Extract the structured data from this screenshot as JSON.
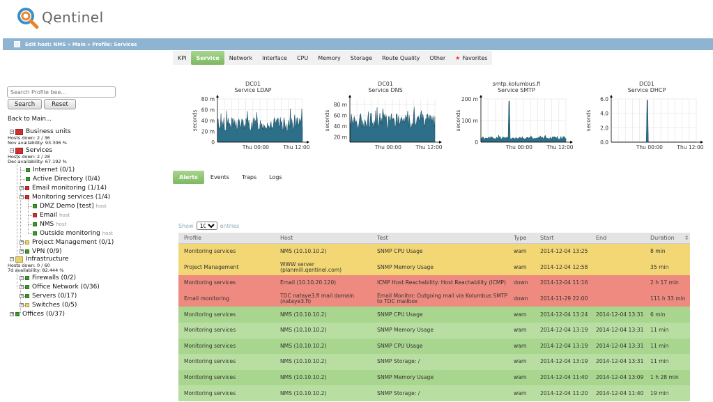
{
  "app": {
    "name": "Qentinel"
  },
  "breadcrumb": {
    "text": "Edit host: NMS » Main » Profile: Services"
  },
  "top_tabs": [
    {
      "label": "KPI",
      "active": false
    },
    {
      "label": "Service",
      "active": true
    },
    {
      "label": "Network",
      "active": false
    },
    {
      "label": "Interface",
      "active": false
    },
    {
      "label": "CPU",
      "active": false
    },
    {
      "label": "Memory",
      "active": false
    },
    {
      "label": "Storage",
      "active": false
    },
    {
      "label": "Route Quality",
      "active": false
    },
    {
      "label": "Other",
      "active": false
    },
    {
      "label": "Favorites",
      "active": false
    }
  ],
  "sidebar": {
    "search_placeholder": "Search Profile bee...",
    "search_label": "Search",
    "reset_label": "Reset",
    "back_label": "Back to Main...",
    "tree": {
      "business_units": {
        "label": "Business units",
        "line1": "Hosts down: 2 / 36",
        "line2": "Nov availability: 93.306 %"
      },
      "services": {
        "label": "Services",
        "line1": "Hosts down: 2 / 28",
        "line2": "Dec availability: 67.192 %"
      },
      "internet": "Internet (0/1)",
      "active_directory": "Active Directory (0/4)",
      "email_monitoring": "Email monitoring (1/14)",
      "monitoring_services": "Monitoring services (1/4)",
      "dmz_demo": "DMZ Demo [test]",
      "email": "Email",
      "nms": "NMS",
      "outside_monitoring": "Outside monitoring",
      "host_tag": "host",
      "project_management": "Project Management (0/1)",
      "vpn": "VPN (0/9)",
      "infrastructure": {
        "label": "Infrastructure",
        "line1": "Hosts down: 0 / 60",
        "line2": "7d availability: 82.444 %"
      },
      "firewalls": "Firewalls (0/2)",
      "office_network": "Office Network (0/36)",
      "servers": "Servers (0/17)",
      "switches": "Switches (0/5)",
      "offices": "Offices (0/37)"
    }
  },
  "colors": {
    "green": "#3a9a2a",
    "red": "#d03030",
    "yellow": "#e8d36a",
    "row_yellow": "#f2d774",
    "row_red": "#ef8a80",
    "row_green": "#a8d68e",
    "chart_fill": "#2d6e88"
  },
  "chart_data": [
    {
      "type": "area",
      "title": "DC01",
      "subtitle": "Service LDAP",
      "ylabel": "seconds",
      "yticks": [
        "0",
        "20 m",
        "40 m",
        "60 m",
        "80 m"
      ],
      "ylim": [
        0,
        90
      ],
      "xticks": [
        "Thu 00:00",
        "Thu 12:00"
      ],
      "baseline": 22,
      "noise": 30,
      "spike_at": [],
      "spike_val": 0
    },
    {
      "type": "area",
      "title": "DC01",
      "subtitle": "Service DNS",
      "ylabel": "seconds",
      "yticks": [
        "20 m",
        "40 m",
        "60 m",
        "80 m"
      ],
      "ylim": [
        10,
        90
      ],
      "xticks": [
        "Thu 00:00",
        "Thu 12:00"
      ],
      "baseline": 35,
      "noise": 30,
      "spike_at": [],
      "spike_val": 0
    },
    {
      "type": "area",
      "title": "smtp.kolumbus.fi",
      "subtitle": "Service SMTP",
      "ylabel": "seconds",
      "yticks": [
        "0",
        "100 m",
        "200 m"
      ],
      "ylim": [
        0,
        200
      ],
      "xticks": [
        "Thu 00:00",
        "Thu 12:00"
      ],
      "baseline": 14,
      "noise": 12,
      "spike_at": [
        0.33
      ],
      "spike_val": 190
    },
    {
      "type": "area",
      "title": "DC01",
      "subtitle": "Service DHCP",
      "ylabel": "seconds",
      "yticks": [
        "0.0",
        "2.0",
        "4.0",
        "6.0"
      ],
      "ylim": [
        0,
        7
      ],
      "xticks": [
        "Thu 00:00",
        "Thu 12:00"
      ],
      "baseline": 0,
      "noise": 0,
      "spike_at": [
        0.42
      ],
      "spike_val": 6.8
    }
  ],
  "alert_tabs": [
    {
      "label": "Alerts",
      "active": true
    },
    {
      "label": "Events",
      "active": false
    },
    {
      "label": "Traps",
      "active": false
    },
    {
      "label": "Logs",
      "active": false
    }
  ],
  "show_entries": {
    "prefix": "Show",
    "value": "10",
    "suffix": "entries"
  },
  "table": {
    "headers": [
      "Profile",
      "Host",
      "Test",
      "Type",
      "Start",
      "End",
      "Duration"
    ],
    "rows": [
      {
        "color": "#f2d774",
        "cells": [
          "Monitoring services",
          "NMS (10.10.10.2)",
          "SNMP CPU Usage",
          "warn",
          "2014-12-04 13:25",
          "",
          "8 min"
        ]
      },
      {
        "color": "#f2d774",
        "cells": [
          "Project Management",
          "WWW server (planmill.qentinel.com)",
          "SNMP Memory Usage",
          "warn",
          "2014-12-04 12:58",
          "",
          "35 min"
        ]
      },
      {
        "color": "#ef8a80",
        "cells": [
          "Monitoring services",
          "Email (10.10.20.120)",
          "ICMP Host Reachability: Host Reachability (ICMP)",
          "down",
          "2014-12-04 11:16",
          "",
          "2 h 17 min"
        ]
      },
      {
        "color": "#ef8a80",
        "cells": [
          "Email monitoring",
          "TDC nataye3.fi mail domain (nataye3.fi)",
          "Email Monitor: Outgoing mail via Kolumbus SMTP to TDC mailbox",
          "down",
          "2014-11-29 22:00",
          "",
          "111 h 33 min"
        ]
      },
      {
        "color": "#a8d68e",
        "cells": [
          "Monitoring services",
          "NMS (10.10.10.2)",
          "SNMP CPU Usage",
          "warn",
          "2014-12-04 13:24",
          "2014-12-04 13:31",
          "6 min"
        ]
      },
      {
        "color": "#b8dea2",
        "cells": [
          "Monitoring services",
          "NMS (10.10.10.2)",
          "SNMP Memory Usage",
          "warn",
          "2014-12-04 13:19",
          "2014-12-04 13:31",
          "11 min"
        ]
      },
      {
        "color": "#a8d68e",
        "cells": [
          "Monitoring services",
          "NMS (10.10.10.2)",
          "SNMP CPU Usage",
          "warn",
          "2014-12-04 13:19",
          "2014-12-04 13:31",
          "11 min"
        ]
      },
      {
        "color": "#b8dea2",
        "cells": [
          "Monitoring services",
          "NMS (10.10.10.2)",
          "SNMP Storage: /",
          "warn",
          "2014-12-04 13:19",
          "2014-12-04 13:31",
          "11 min"
        ]
      },
      {
        "color": "#a8d68e",
        "cells": [
          "Monitoring services",
          "NMS (10.10.10.2)",
          "SNMP Memory Usage",
          "warn",
          "2014-12-04 11:40",
          "2014-12-04 13:09",
          "1 h 28 min"
        ]
      },
      {
        "color": "#b8dea2",
        "cells": [
          "Monitoring services",
          "NMS (10.10.10.2)",
          "SNMP Storage: /",
          "warn",
          "2014-12-04 11:20",
          "2014-12-04 11:40",
          "19 min"
        ]
      }
    ]
  }
}
